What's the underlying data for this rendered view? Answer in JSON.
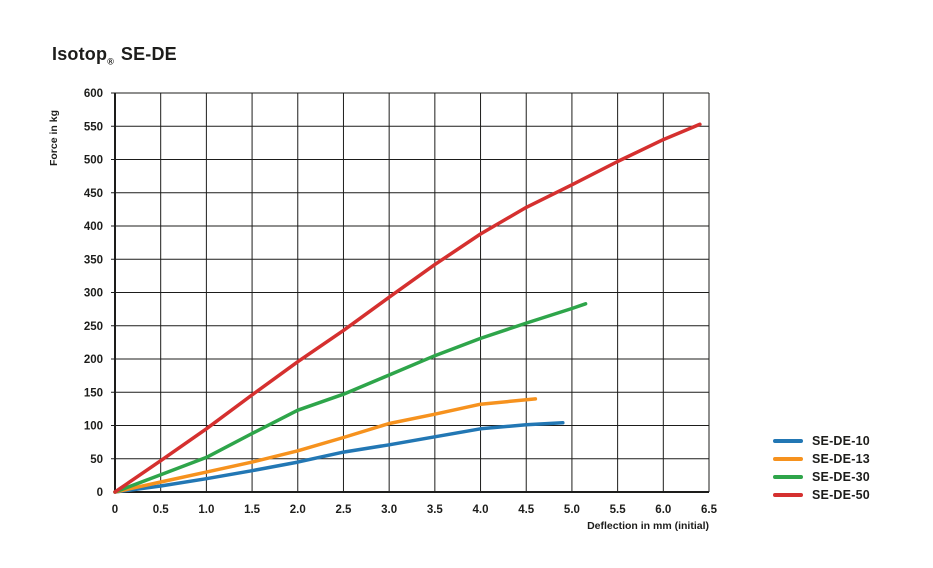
{
  "title": {
    "brand": "Isotop",
    "registered": "®",
    "product": "SE-DE"
  },
  "chart_data": {
    "type": "line",
    "title": "Isotop® SE-DE",
    "xlabel": "Deflection in mm (initial)",
    "ylabel": "Force in kg",
    "xlim": [
      0,
      6.5
    ],
    "ylim": [
      0,
      600
    ],
    "xticks": [
      0,
      0.5,
      1.0,
      1.5,
      2.0,
      2.5,
      3.0,
      3.5,
      4.0,
      4.5,
      5.0,
      5.5,
      6.0,
      6.5
    ],
    "xtick_labels": [
      "0",
      "0.5",
      "1.0",
      "1.5",
      "2.0",
      "2.5",
      "3.0",
      "3.5",
      "4.0",
      "4.5",
      "5.0",
      "5.5",
      "6.0",
      "6.5"
    ],
    "yticks": [
      0,
      50,
      100,
      150,
      200,
      250,
      300,
      350,
      400,
      450,
      500,
      550,
      600
    ],
    "grid": true,
    "grid_color": "#1d1d1b",
    "text_color": "#1d1d1b",
    "legend_position": "right",
    "series": [
      {
        "name": "SE-DE-10",
        "color": "#2277b4",
        "points": [
          [
            0,
            0
          ],
          [
            0.5,
            9
          ],
          [
            1,
            20
          ],
          [
            1.5,
            32
          ],
          [
            2,
            45
          ],
          [
            2.5,
            60
          ],
          [
            3,
            71
          ],
          [
            3.5,
            83
          ],
          [
            4,
            95
          ],
          [
            4.5,
            101
          ],
          [
            4.9,
            104
          ]
        ]
      },
      {
        "name": "SE-DE-13",
        "color": "#f6921e",
        "points": [
          [
            0,
            0
          ],
          [
            0.5,
            15
          ],
          [
            1,
            30
          ],
          [
            1.5,
            45
          ],
          [
            2,
            62
          ],
          [
            2.5,
            82
          ],
          [
            3,
            103
          ],
          [
            3.5,
            117
          ],
          [
            4,
            132
          ],
          [
            4.6,
            140
          ]
        ]
      },
      {
        "name": "SE-DE-30",
        "color": "#2ea54a",
        "points": [
          [
            0,
            0
          ],
          [
            0.5,
            26
          ],
          [
            1,
            52
          ],
          [
            1.5,
            88
          ],
          [
            2,
            123
          ],
          [
            2.5,
            147
          ],
          [
            3,
            176
          ],
          [
            3.5,
            205
          ],
          [
            4,
            231
          ],
          [
            4.5,
            254
          ],
          [
            5,
            276
          ],
          [
            5.15,
            283
          ]
        ]
      },
      {
        "name": "SE-DE-50",
        "color": "#d5302f",
        "points": [
          [
            0,
            0
          ],
          [
            0.5,
            47
          ],
          [
            1,
            95
          ],
          [
            1.5,
            146
          ],
          [
            2,
            196
          ],
          [
            2.5,
            243
          ],
          [
            3,
            293
          ],
          [
            3.5,
            342
          ],
          [
            4,
            388
          ],
          [
            4.5,
            428
          ],
          [
            5,
            462
          ],
          [
            5.5,
            497
          ],
          [
            6,
            530
          ],
          [
            6.4,
            553
          ]
        ]
      }
    ]
  }
}
